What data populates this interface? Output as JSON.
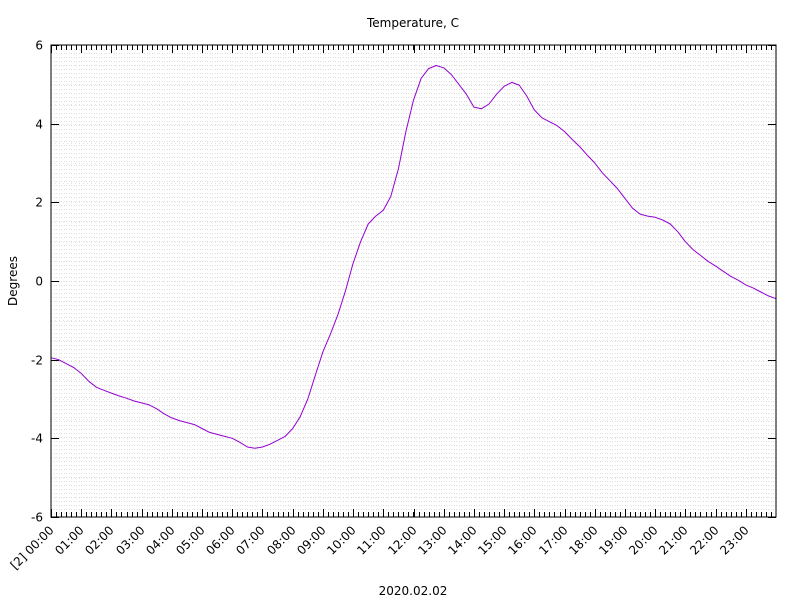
{
  "chart_data": {
    "type": "line",
    "title": "Temperature, C",
    "xlabel": "2020.02.02",
    "ylabel": "Degrees",
    "ylim": [
      -6,
      6
    ],
    "yticks": [
      -6,
      -4,
      -2,
      0,
      2,
      4,
      6
    ],
    "xlim": [
      0,
      24
    ],
    "xticks": [
      "[2] 00:00",
      "01:00",
      "02:00",
      "03:00",
      "04:00",
      "05:00",
      "06:00",
      "07:00",
      "08:00",
      "09:00",
      "10:00",
      "11:00",
      "12:00",
      "13:00",
      "14:00",
      "15:00",
      "16:00",
      "17:00",
      "18:00",
      "19:00",
      "20:00",
      "21:00",
      "22:00",
      "23:00"
    ],
    "grid": true,
    "line_color": "#9400d3",
    "series": [
      {
        "x": [
          0.0,
          0.25,
          0.5,
          0.75,
          1.0,
          1.25,
          1.5,
          1.75,
          2.0,
          2.25,
          2.5,
          2.75,
          3.0,
          3.25,
          3.5,
          3.75,
          4.0,
          4.25,
          4.5,
          4.75,
          5.0,
          5.25,
          5.5,
          5.75,
          6.0,
          6.25,
          6.5,
          6.75,
          7.0,
          7.25,
          7.5,
          7.75,
          8.0,
          8.25,
          8.5,
          8.75,
          9.0,
          9.25,
          9.5,
          9.75,
          10.0,
          10.25,
          10.5,
          10.75,
          11.0,
          11.25,
          11.5,
          11.75,
          12.0,
          12.25,
          12.5,
          12.75,
          13.0,
          13.25,
          13.5,
          13.75,
          14.0,
          14.25,
          14.5,
          14.75,
          15.0,
          15.25,
          15.5,
          15.75,
          16.0,
          16.25,
          16.5,
          16.75,
          17.0,
          17.25,
          17.5,
          17.75,
          18.0,
          18.25,
          18.5,
          18.75,
          19.0,
          19.25,
          19.5,
          19.75,
          20.0,
          20.25,
          20.5,
          20.75,
          21.0,
          21.25,
          21.5,
          21.75,
          22.0,
          22.25,
          22.5,
          22.75,
          23.0,
          23.25,
          23.5,
          23.75,
          24.0
        ],
        "values": [
          -1.95,
          -2.0,
          -2.1,
          -2.2,
          -2.35,
          -2.55,
          -2.7,
          -2.78,
          -2.85,
          -2.92,
          -2.98,
          -3.05,
          -3.1,
          -3.15,
          -3.25,
          -3.38,
          -3.48,
          -3.55,
          -3.6,
          -3.65,
          -3.75,
          -3.85,
          -3.9,
          -3.95,
          -4.0,
          -4.1,
          -4.22,
          -4.25,
          -4.22,
          -4.15,
          -4.05,
          -3.95,
          -3.75,
          -3.45,
          -3.0,
          -2.4,
          -1.8,
          -1.35,
          -0.85,
          -0.25,
          0.45,
          1.0,
          1.45,
          1.65,
          1.8,
          2.15,
          2.85,
          3.8,
          4.6,
          5.15,
          5.4,
          5.48,
          5.42,
          5.25,
          5.0,
          4.75,
          4.42,
          4.38,
          4.5,
          4.75,
          4.95,
          5.05,
          4.98,
          4.7,
          4.35,
          4.15,
          4.05,
          3.95,
          3.8,
          3.6,
          3.42,
          3.2,
          3.0,
          2.75,
          2.55,
          2.35,
          2.1,
          1.85,
          1.7,
          1.65,
          1.62,
          1.55,
          1.45,
          1.25,
          1.0,
          0.8,
          0.65,
          0.5,
          0.38,
          0.25,
          0.12,
          0.02,
          -0.1,
          -0.18,
          -0.28,
          -0.38,
          -0.45
        ]
      }
    ]
  }
}
